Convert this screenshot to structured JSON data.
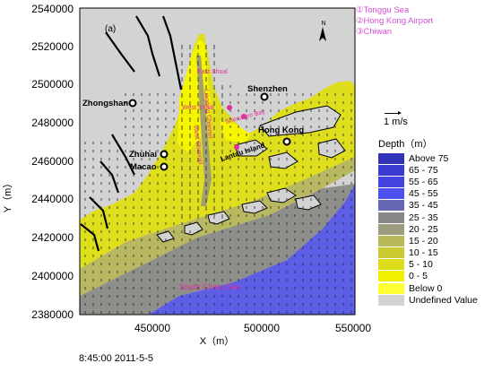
{
  "panel_label": "(a)",
  "y_axis": {
    "title": "Y（m）",
    "ticks": [
      "2540000",
      "2520000",
      "2500000",
      "2480000",
      "2460000",
      "2440000",
      "2420000",
      "2400000",
      "2380000"
    ]
  },
  "x_axis": {
    "title": "X（m）",
    "ticks": [
      "450000",
      "500000",
      "550000"
    ]
  },
  "cities": {
    "zhongshan": "Zhongshan",
    "shenzhen": "Shenzhen",
    "zhuhai": "Zhuhai",
    "macao": "Macao",
    "hong_kong": "Hong Kong",
    "lantau": "Lantau Island"
  },
  "features": {
    "east_shoal": "East Shoal",
    "west_shoal": "West Shoal",
    "lingding_channel": "Lingding Channel",
    "shenzhen_bay": "Shenzhen Bay",
    "west_channel": "West Channel",
    "south_china_sea": "South China Sea"
  },
  "annotations": [
    "①Tonggu Sea",
    "②Hong Kong Airport",
    "③Chiwan"
  ],
  "current_scale": {
    "label": "1 m/s"
  },
  "legend": {
    "title": "Depth（m）",
    "items": [
      {
        "label": "Above 75",
        "color": "#3333b8"
      },
      {
        "label": "65 - 75",
        "color": "#3b3bd0"
      },
      {
        "label": "55 - 65",
        "color": "#4444e0"
      },
      {
        "label": "45 - 55",
        "color": "#4c52f0"
      },
      {
        "label": "35 - 45",
        "color": "#6668b4"
      },
      {
        "label": "25 - 35",
        "color": "#888888"
      },
      {
        "label": "20 - 25",
        "color": "#9c9c80"
      },
      {
        "label": "15 - 20",
        "color": "#b8b858"
      },
      {
        "label": "10 - 15",
        "color": "#c9c930"
      },
      {
        "label": "5 - 10",
        "color": "#dcdc18"
      },
      {
        "label": "0 -  5",
        "color": "#f0f000"
      },
      {
        "label": "Below   0",
        "color": "#ffff33"
      },
      {
        "label": "Undefined Value",
        "color": "#d3d3d3"
      }
    ]
  },
  "timestamp": "8:45:00 2011-5-5"
}
